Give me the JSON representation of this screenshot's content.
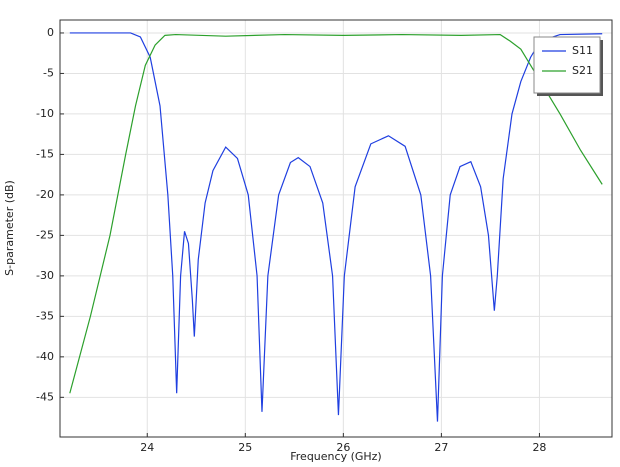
{
  "chart_data": {
    "type": "line",
    "x_label": "Frequency (GHz)",
    "y_label": "S-parameter (dB)",
    "xlim": [
      23.11,
      28.74
    ],
    "ylim": [
      -49.9,
      1.6
    ],
    "xticks": [
      24,
      25,
      26,
      27,
      28
    ],
    "yticks": [
      0,
      -5,
      -10,
      -15,
      -20,
      -25,
      -30,
      -35,
      -40,
      -45
    ],
    "grid": true,
    "legend": "upper right",
    "series": [
      {
        "name": "S11",
        "color": "#1f3fe0",
        "x": [
          23.21,
          23.83,
          23.93,
          24.03,
          24.13,
          24.21,
          24.26,
          24.3,
          24.34,
          24.38,
          24.42,
          24.46,
          24.48,
          24.52,
          24.59,
          24.67,
          24.8,
          24.92,
          25.03,
          25.12,
          25.17,
          25.23,
          25.34,
          25.46,
          25.54,
          25.66,
          25.79,
          25.89,
          25.95,
          26.01,
          26.12,
          26.28,
          26.46,
          26.63,
          26.79,
          26.89,
          26.96,
          27.01,
          27.09,
          27.19,
          27.3,
          27.4,
          27.48,
          27.54,
          27.57,
          27.63,
          27.72,
          27.81,
          27.91,
          28.01,
          28.21,
          28.64
        ],
        "values": [
          0,
          0,
          -0.5,
          -3,
          -9,
          -20,
          -30,
          -44.5,
          -30,
          -24.5,
          -26,
          -33,
          -37.5,
          -28,
          -21,
          -17,
          -14.1,
          -15.5,
          -20,
          -30,
          -46.8,
          -30,
          -20,
          -16,
          -15.4,
          -16.5,
          -21,
          -30,
          -47.2,
          -30,
          -19,
          -13.7,
          -12.7,
          -14,
          -20,
          -30,
          -48,
          -30,
          -20,
          -16.5,
          -15.9,
          -19,
          -25,
          -34.3,
          -30,
          -18,
          -10,
          -6,
          -3,
          -1,
          -0.2,
          -0.1
        ]
      },
      {
        "name": "S21",
        "color": "#2ca02c",
        "x": [
          23.21,
          23.42,
          23.62,
          23.78,
          23.88,
          23.98,
          24.08,
          24.18,
          24.29,
          24.8,
          25.4,
          26.0,
          26.6,
          27.2,
          27.6,
          27.7,
          27.81,
          27.91,
          28.06,
          28.21,
          28.42,
          28.64
        ],
        "values": [
          -44.5,
          -35,
          -25,
          -15,
          -9,
          -4,
          -1.5,
          -0.3,
          -0.2,
          -0.4,
          -0.2,
          -0.3,
          -0.2,
          -0.3,
          -0.2,
          -1,
          -2,
          -4,
          -7,
          -10,
          -14.5,
          -18.7
        ]
      }
    ]
  }
}
